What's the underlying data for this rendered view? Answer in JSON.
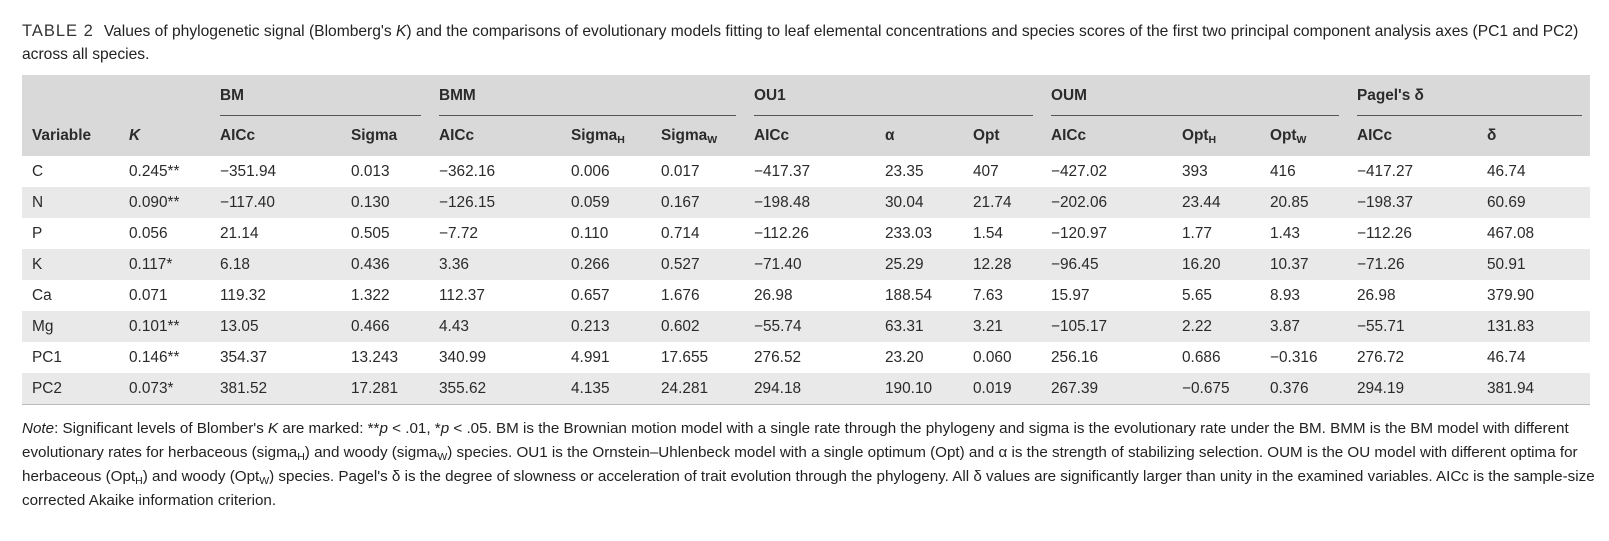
{
  "caption": {
    "label": "TABLE 2",
    "text_before_k": "Values of phylogenetic signal (Blomberg's ",
    "k_symbol": "K",
    "text_after_k": ") and the comparisons of evolutionary models fitting to leaf elemental concentrations and species scores of the first two principal component analysis axes (PC1 and PC2) across all species."
  },
  "groups": {
    "bm": "BM",
    "bmm": "BMM",
    "ou1": "OU1",
    "oum": "OUM",
    "pagel": "Pagel's δ"
  },
  "columns": {
    "variable": "Variable",
    "k": "K",
    "bm_aicc": "AICc",
    "bm_sigma": "Sigma",
    "bmm_aicc": "AICc",
    "bmm_sigma_h_base": "Sigma",
    "bmm_sigma_h_sub": "H",
    "bmm_sigma_w_base": "Sigma",
    "bmm_sigma_w_sub": "W",
    "ou1_aicc": "AICc",
    "ou1_alpha": "α",
    "ou1_opt": "Opt",
    "oum_aicc": "AICc",
    "oum_opt_h_base": "Opt",
    "oum_opt_h_sub": "H",
    "oum_opt_w_base": "Opt",
    "oum_opt_w_sub": "W",
    "pagel_aicc": "AICc",
    "pagel_delta": "δ"
  },
  "rows": [
    [
      "C",
      "0.245**",
      "−351.94",
      "0.013",
      "−362.16",
      "0.006",
      "0.017",
      "−417.37",
      "23.35",
      "407",
      "−427.02",
      "393",
      "416",
      "−417.27",
      "46.74"
    ],
    [
      "N",
      "0.090**",
      "−117.40",
      "0.130",
      "−126.15",
      "0.059",
      "0.167",
      "−198.48",
      "30.04",
      "21.74",
      "−202.06",
      "23.44",
      "20.85",
      "−198.37",
      "60.69"
    ],
    [
      "P",
      "0.056",
      "21.14",
      "0.505",
      "−7.72",
      "0.110",
      "0.714",
      "−112.26",
      "233.03",
      "1.54",
      "−120.97",
      "1.77",
      "1.43",
      "−112.26",
      "467.08"
    ],
    [
      "K",
      "0.117*",
      "6.18",
      "0.436",
      "3.36",
      "0.266",
      "0.527",
      "−71.40",
      "25.29",
      "12.28",
      "−96.45",
      "16.20",
      "10.37",
      "−71.26",
      "50.91"
    ],
    [
      "Ca",
      "0.071",
      "119.32",
      "1.322",
      "112.37",
      "0.657",
      "1.676",
      "26.98",
      "188.54",
      "7.63",
      "15.97",
      "5.65",
      "8.93",
      "26.98",
      "379.90"
    ],
    [
      "Mg",
      "0.101**",
      "13.05",
      "0.466",
      "4.43",
      "0.213",
      "0.602",
      "−55.74",
      "63.31",
      "3.21",
      "−105.17",
      "2.22",
      "3.87",
      "−55.71",
      "131.83"
    ],
    [
      "PC1",
      "0.146**",
      "354.37",
      "13.243",
      "340.99",
      "4.991",
      "17.655",
      "276.52",
      "23.20",
      "0.060",
      "256.16",
      "0.686",
      "−0.316",
      "276.72",
      "46.74"
    ],
    [
      "PC2",
      "0.073*",
      "381.52",
      "17.281",
      "355.62",
      "4.135",
      "24.281",
      "294.18",
      "190.10",
      "0.019",
      "267.39",
      "−0.675",
      "0.376",
      "294.19",
      "381.94"
    ]
  ],
  "note": {
    "label": "Note",
    "t1": ": Significant levels of Blomber's ",
    "k": "K",
    "t2": " are marked: **",
    "p1": "p",
    "t3": " < .01, *",
    "p2": "p",
    "t4": " < .05. BM is the Brownian motion model with a single rate through the phylogeny and sigma is the evolutionary rate under the BM. BMM is the BM model with different evolutionary rates for herbaceous (sigma",
    "s1": "H",
    "t5": ") and woody (sigma",
    "s2": "W",
    "t6": ") species. OU1 is the Ornstein–Uhlenbeck model with a single optimum (Opt) and α is the strength of stabilizing selection. OUM is the OU model with different optima for herbaceous (Opt",
    "s3": "H",
    "t7": ") and woody (Opt",
    "s4": "W",
    "t8": ") species. Pagel's δ is the degree of slowness or acceleration of trait evolution through the phylogeny. All δ values are significantly larger than unity in the examined variables. AICc is the sample-size corrected Akaike information criterion."
  }
}
